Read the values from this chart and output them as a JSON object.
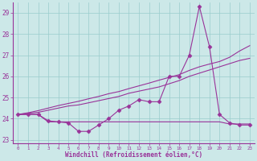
{
  "x": [
    0,
    1,
    2,
    3,
    4,
    5,
    6,
    7,
    8,
    9,
    10,
    11,
    12,
    13,
    14,
    15,
    16,
    17,
    18,
    19,
    20,
    21,
    22,
    23
  ],
  "y_main": [
    24.2,
    24.2,
    24.2,
    23.9,
    23.85,
    23.8,
    23.4,
    23.4,
    23.7,
    24.0,
    24.4,
    24.6,
    24.9,
    24.8,
    24.8,
    26.0,
    26.0,
    27.0,
    29.3,
    27.4,
    24.2,
    23.8,
    23.7,
    23.7
  ],
  "y_trend1": [
    24.2,
    24.25,
    24.3,
    24.4,
    24.5,
    24.6,
    24.65,
    24.75,
    24.85,
    24.95,
    25.05,
    25.2,
    25.3,
    25.4,
    25.5,
    25.65,
    25.8,
    26.0,
    26.15,
    26.3,
    26.45,
    26.6,
    26.75,
    26.85
  ],
  "y_trend2": [
    24.2,
    24.28,
    24.38,
    24.5,
    24.62,
    24.72,
    24.82,
    24.94,
    25.05,
    25.18,
    25.28,
    25.42,
    25.55,
    25.68,
    25.82,
    25.95,
    26.08,
    26.28,
    26.45,
    26.58,
    26.7,
    26.9,
    27.2,
    27.45
  ],
  "y_flat": [
    24.2,
    24.2,
    24.2,
    23.85,
    23.85,
    23.85,
    23.85,
    23.85,
    23.85,
    23.85,
    23.85,
    23.85,
    23.85,
    23.85,
    23.85,
    23.85,
    23.85,
    23.85,
    23.85,
    23.85,
    23.85,
    23.75,
    23.75,
    23.75
  ],
  "color": "#993399",
  "bg_color": "#cce8e8",
  "grid_color": "#99cccc",
  "ylim": [
    22.85,
    29.5
  ],
  "xlim": [
    -0.5,
    23.5
  ],
  "yticks": [
    23,
    24,
    25,
    26,
    27,
    28,
    29
  ],
  "xticks": [
    0,
    1,
    2,
    3,
    4,
    5,
    6,
    7,
    8,
    9,
    10,
    11,
    12,
    13,
    14,
    15,
    16,
    17,
    18,
    19,
    20,
    21,
    22,
    23
  ],
  "xlabel": "Windchill (Refroidissement éolien,°C)",
  "marker": "D"
}
